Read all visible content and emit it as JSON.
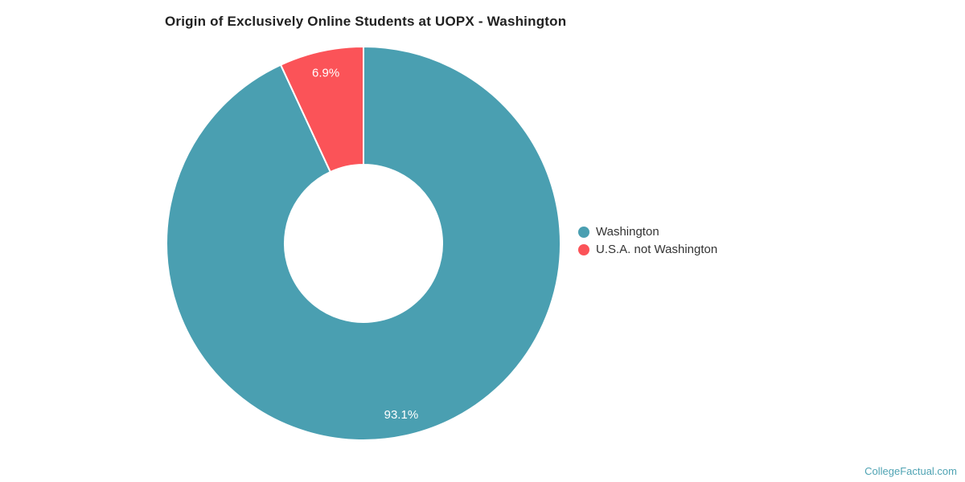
{
  "chart_data": {
    "type": "pie",
    "subtype": "donut",
    "title": "Origin of Exclusively Online Students at UOPX - Washington",
    "legend_position": "right",
    "start_angle_deg": 0,
    "direction": "clockwise",
    "inner_radius_ratio": 0.4,
    "slices": [
      {
        "name": "Washington",
        "value": 93.1,
        "label": "93.1%",
        "color": "#4A9FB1"
      },
      {
        "name": "U.S.A. not Washington",
        "value": 6.9,
        "label": "6.9%",
        "color": "#FB5358"
      }
    ],
    "slice_border_color": "#FFFFFF",
    "slice_border_width": 2,
    "slice_label_color": "#FFFFFF"
  },
  "watermark": "CollegeFactual.com",
  "colors": {
    "title_text": "#212121",
    "legend_text": "#333333",
    "watermark_text": "#4FA3B3",
    "background": "#FFFFFF"
  }
}
